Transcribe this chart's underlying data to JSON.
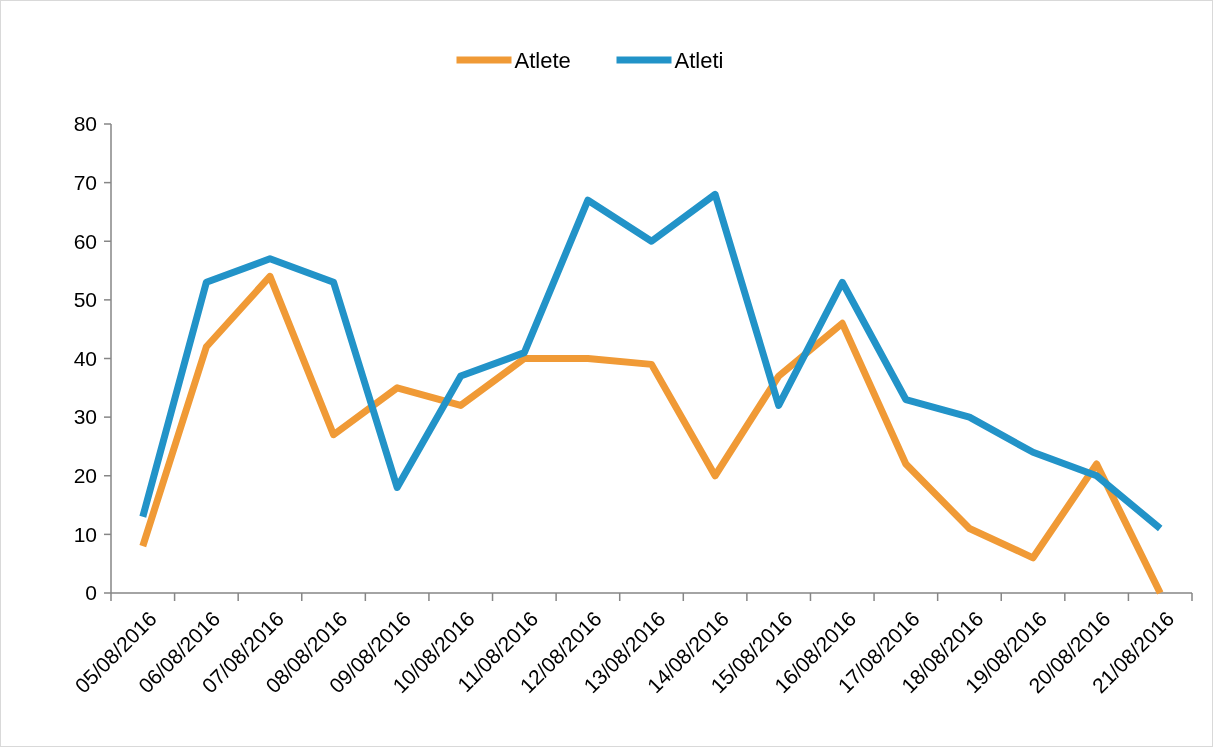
{
  "chart_data": {
    "type": "line",
    "categories": [
      "05/08/2016",
      "06/08/2016",
      "07/08/2016",
      "08/08/2016",
      "09/08/2016",
      "10/08/2016",
      "11/08/2016",
      "12/08/2016",
      "13/08/2016",
      "14/08/2016",
      "15/08/2016",
      "16/08/2016",
      "17/08/2016",
      "18/08/2016",
      "19/08/2016",
      "20/08/2016",
      "21/08/2016"
    ],
    "series": [
      {
        "name": "Atlete",
        "color": "#f09a36",
        "values": [
          8,
          42,
          54,
          27,
          35,
          32,
          40,
          40,
          39,
          20,
          37,
          46,
          22,
          11,
          6,
          22,
          0
        ]
      },
      {
        "name": "Atleti",
        "color": "#2293c8",
        "values": [
          13,
          53,
          57,
          53,
          18,
          37,
          41,
          67,
          60,
          68,
          32,
          53,
          33,
          30,
          24,
          20,
          11
        ]
      }
    ],
    "ylim": [
      0,
      80
    ],
    "yticks": [
      0,
      10,
      20,
      30,
      40,
      50,
      60,
      70,
      80
    ],
    "grid": false,
    "legend": "top",
    "marker": "none",
    "line_style": "solid"
  }
}
